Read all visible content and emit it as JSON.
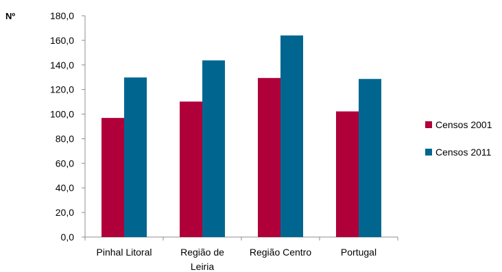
{
  "chart_data": {
    "type": "bar",
    "unit_label": "Nº",
    "categories": [
      [
        "Pinhal Litoral"
      ],
      [
        "Região de",
        "Leiria"
      ],
      [
        "Região Centro"
      ],
      [
        "Portugal"
      ]
    ],
    "series": [
      {
        "name": "Censos 2001",
        "color": "#b0003a",
        "values": [
          96.9,
          110.2,
          129.4,
          102.2
        ]
      },
      {
        "name": "Censos 2011",
        "color": "#006690",
        "values": [
          129.8,
          143.7,
          164.0,
          128.6
        ]
      }
    ],
    "yticks": [
      "0,0",
      "20,0",
      "40,0",
      "60,0",
      "80,0",
      "100,0",
      "120,0",
      "140,0",
      "160,0",
      "180,0"
    ],
    "ylim": [
      0,
      180
    ],
    "grid": false,
    "legend_position": "right"
  }
}
